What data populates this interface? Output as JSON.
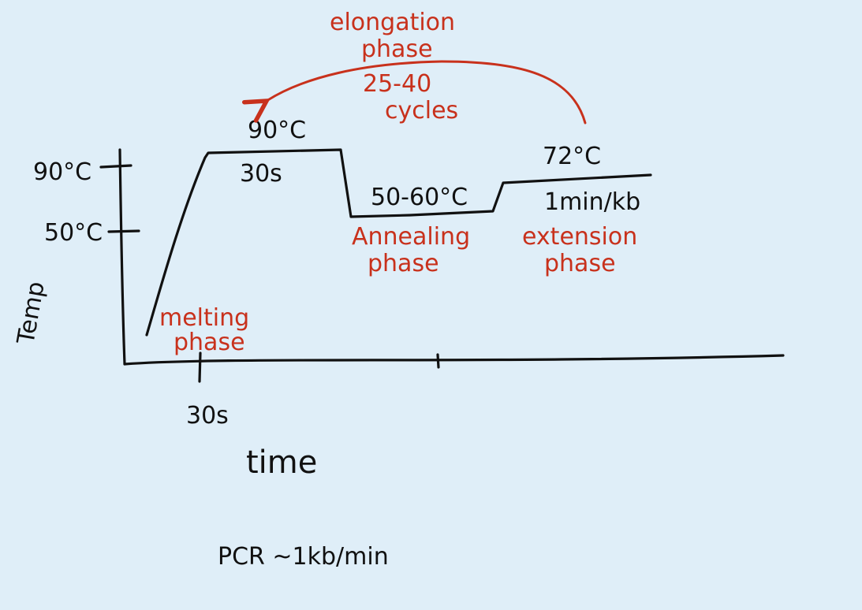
{
  "colors": {
    "background": "#dfeef8",
    "ink": "#111111",
    "annotation": "#c8311c"
  },
  "axes": {
    "y_label": "Temp",
    "x_label": "time",
    "y_ticks": [
      "90°C",
      "50°C"
    ],
    "x_tick": "30s"
  },
  "steps": {
    "melting_temp": "90°C",
    "melting_time": "30s",
    "annealing_temp": "50-60°C",
    "extension_temp": "72°C",
    "extension_time": "1min/kb"
  },
  "phases": {
    "melting": [
      "melting",
      "phase"
    ],
    "annealing": [
      "Annealing",
      "phase"
    ],
    "extension": [
      "extension",
      "phase"
    ],
    "elongation": [
      "elongation",
      "phase"
    ]
  },
  "cycles": [
    "25-40",
    "cycles"
  ],
  "footer_note": "PCR ~1kb/min"
}
